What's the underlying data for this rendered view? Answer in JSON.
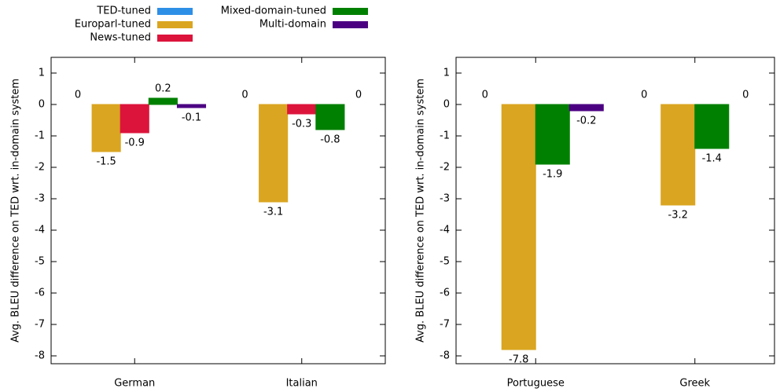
{
  "chart_data": [
    {
      "type": "bar",
      "ylabel": "Avg. BLEU difference on TED wrt. in-domain system",
      "categories": [
        "German",
        "Italian"
      ],
      "series": [
        {
          "name": "TED-tuned",
          "color": "#2e8fe6",
          "values": [
            0,
            0
          ]
        },
        {
          "name": "Europarl-tuned",
          "color": "#daa520",
          "values": [
            -1.5,
            -3.1
          ]
        },
        {
          "name": "News-tuned",
          "color": "#dc143c",
          "values": [
            -0.9,
            -0.3
          ]
        },
        {
          "name": "Mixed-domain-tuned",
          "color": "#008000",
          "values": [
            0.2,
            -0.8
          ]
        },
        {
          "name": "Multi-domain",
          "color": "#4b0082",
          "values": [
            -0.1,
            0
          ]
        }
      ],
      "ylim": [
        -8.25,
        1.5
      ],
      "yticks": [
        -8,
        -7,
        -6,
        -5,
        -4,
        -3,
        -2,
        -1,
        0,
        1
      ]
    },
    {
      "type": "bar",
      "ylabel": "Avg. BLEU difference on TED wrt. in-domain system",
      "categories": [
        "Portuguese",
        "Greek"
      ],
      "series": [
        {
          "color": "#2e8fe6",
          "values": [
            0,
            0
          ]
        },
        {
          "color": "#daa520",
          "values": [
            -7.8,
            -3.2
          ]
        },
        {
          "color": "#008000",
          "values": [
            -1.9,
            -1.4
          ]
        },
        {
          "color": "#4b0082",
          "values": [
            -0.2,
            0
          ]
        }
      ],
      "ylim": [
        -8.25,
        1.5
      ],
      "yticks": [
        -8,
        -7,
        -6,
        -5,
        -4,
        -3,
        -2,
        -1,
        0,
        1
      ]
    }
  ]
}
